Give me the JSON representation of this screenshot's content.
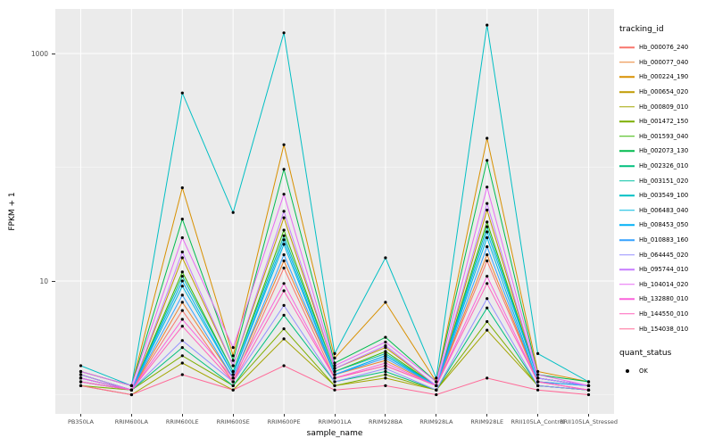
{
  "figure": {
    "background": "#FFFFFF",
    "panel_background": "#EBEBEB",
    "gridline_color": "#FFFFFF",
    "tick_label_color": "#4D4D4D",
    "point_color": "#000000"
  },
  "legend": {
    "tracking_id_title": "tracking_id",
    "quant_status_title": "quant_status",
    "quant_status_items": [
      "OK"
    ]
  },
  "chart_data": {
    "type": "line",
    "title": "",
    "xlabel": "sample_name",
    "ylabel": "FPKM + 1",
    "y_scale": "log10",
    "ylim": [
      0.68,
      2470
    ],
    "y_ticks": [
      1000,
      10
    ],
    "y_tick_labels": [
      "1000",
      "10"
    ],
    "y_minor_gridlines": [
      100,
      1
    ],
    "grid": true,
    "legend_position": "right",
    "categories": [
      "PB350LA",
      "RRIM600LA",
      "RRIM600LE",
      "RRIM600SE",
      "RRIM600PE",
      "RRIM901LA",
      "RRIM928BA",
      "RRIM928LA",
      "RRIM928LE",
      "RRII105LA_Control",
      "RRII105LA_Stressed"
    ],
    "series": [
      {
        "name": "Hb_000076_240",
        "color": "#F8766D",
        "values": [
          1.3,
          1.1,
          5.5,
          1.3,
          13,
          1.4,
          1.8,
          1.2,
          15,
          1.3,
          1.1
        ]
      },
      {
        "name": "Hb_000077_040",
        "color": "#EA8331",
        "values": [
          1.4,
          1.1,
          6.5,
          1.4,
          15,
          1.5,
          2.0,
          1.2,
          17,
          1.3,
          1.2
        ]
      },
      {
        "name": "Hb_000224_190",
        "color": "#D89000",
        "values": [
          1.6,
          1.2,
          66,
          2.2,
          158,
          2.1,
          6.5,
          1.3,
          180,
          1.6,
          1.3
        ]
      },
      {
        "name": "Hb_000654_020",
        "color": "#C09B00",
        "values": [
          1.5,
          1.1,
          16,
          1.8,
          36,
          1.7,
          2.6,
          1.2,
          42,
          1.4,
          1.2
        ]
      },
      {
        "name": "Hb_000809_010",
        "color": "#A3A500",
        "values": [
          1.2,
          1.0,
          1.9,
          1.1,
          3.1,
          1.2,
          1.4,
          1.1,
          3.7,
          1.2,
          1.1
        ]
      },
      {
        "name": "Hb_001472_150",
        "color": "#7CAE00",
        "values": [
          1.2,
          1.1,
          2.2,
          1.2,
          3.8,
          1.2,
          1.5,
          1.1,
          4.4,
          1.2,
          1.1
        ]
      },
      {
        "name": "Hb_001593_040",
        "color": "#39B600",
        "values": [
          1.5,
          1.1,
          12,
          1.6,
          28,
          1.6,
          2.4,
          1.2,
          33,
          1.4,
          1.2
        ]
      },
      {
        "name": "Hb_002073_130",
        "color": "#00BB4E",
        "values": [
          1.6,
          1.2,
          35,
          2.0,
          96,
          1.9,
          3.2,
          1.3,
          115,
          1.5,
          1.3
        ]
      },
      {
        "name": "Hb_002326_010",
        "color": "#00BF7D",
        "values": [
          1.3,
          1.1,
          2.6,
          1.2,
          5.0,
          1.3,
          1.6,
          1.1,
          5.8,
          1.2,
          1.1
        ]
      },
      {
        "name": "Hb_003151_020",
        "color": "#00C1A3",
        "values": [
          1.5,
          1.1,
          11,
          1.6,
          25,
          1.6,
          2.3,
          1.2,
          30,
          1.4,
          1.2
        ]
      },
      {
        "name": "Hb_003549_100",
        "color": "#00BFC4",
        "values": [
          1.8,
          1.2,
          450,
          40,
          1520,
          2.3,
          16,
          1.4,
          1780,
          2.3,
          1.3
        ]
      },
      {
        "name": "Hb_006483_040",
        "color": "#00BAE0",
        "values": [
          1.4,
          1.1,
          9,
          1.5,
          21,
          1.5,
          2.2,
          1.2,
          24,
          1.3,
          1.2
        ]
      },
      {
        "name": "Hb_008453_050",
        "color": "#00B0F6",
        "values": [
          1.4,
          1.1,
          10,
          1.5,
          23,
          1.5,
          2.2,
          1.2,
          27,
          1.4,
          1.2
        ]
      },
      {
        "name": "Hb_010883_160",
        "color": "#35A2FF",
        "values": [
          1.4,
          1.1,
          7.5,
          1.4,
          17,
          1.5,
          2.1,
          1.2,
          20,
          1.3,
          1.2
        ]
      },
      {
        "name": "Hb_064445_020",
        "color": "#9590FF",
        "values": [
          1.3,
          1.1,
          3.0,
          1.3,
          6.1,
          1.3,
          1.7,
          1.1,
          7.0,
          1.2,
          1.1
        ]
      },
      {
        "name": "Hb_095744_010",
        "color": "#C77CFF",
        "values": [
          1.5,
          1.1,
          18,
          1.8,
          41,
          1.7,
          2.7,
          1.2,
          48,
          1.4,
          1.2
        ]
      },
      {
        "name": "Hb_104014_020",
        "color": "#E76BF3",
        "values": [
          1.6,
          1.2,
          24,
          2.6,
          58,
          1.8,
          2.9,
          1.3,
          67,
          1.5,
          1.2
        ]
      },
      {
        "name": "Hb_132880_010",
        "color": "#FA62DB",
        "values": [
          1.4,
          1.1,
          4.6,
          1.4,
          9.5,
          1.4,
          1.9,
          1.2,
          11,
          1.3,
          1.1
        ]
      },
      {
        "name": "Hb_144550_010",
        "color": "#FF62BC",
        "values": [
          1.3,
          1.1,
          4.0,
          1.3,
          8.2,
          1.4,
          1.8,
          1.2,
          9.5,
          1.3,
          1.1
        ]
      },
      {
        "name": "Hb_154038_010",
        "color": "#FF6A98",
        "values": [
          1.2,
          1.0,
          1.5,
          1.1,
          1.8,
          1.1,
          1.2,
          1.0,
          1.4,
          1.1,
          1.0
        ]
      }
    ]
  }
}
